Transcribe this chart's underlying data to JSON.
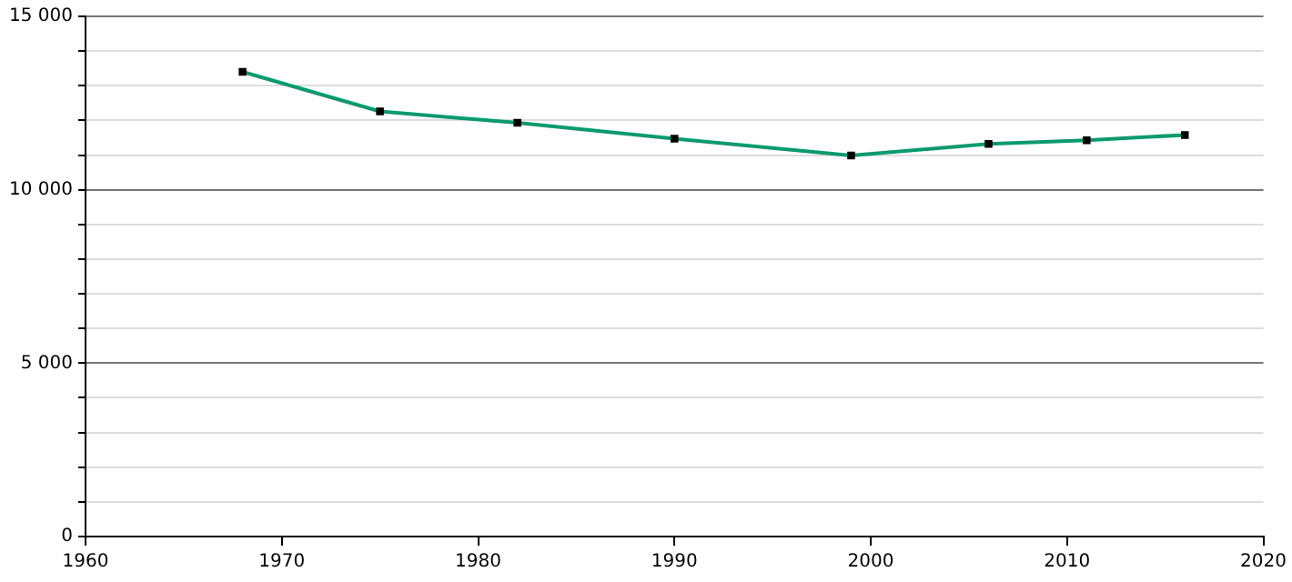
{
  "chart_data": {
    "type": "line",
    "x": [
      1968,
      1975,
      1982,
      1990,
      1999,
      2006,
      2011,
      2016
    ],
    "series": [
      {
        "color": "#0a9a6e",
        "values": [
          13400,
          12260,
          11930,
          11470,
          10990,
          11320,
          11430,
          11580
        ]
      }
    ],
    "xlim": [
      1960,
      2020
    ],
    "xticks": [
      1960,
      1970,
      1980,
      1990,
      2000,
      2010,
      2020
    ],
    "ylim": [
      0,
      15000
    ],
    "yticks": [
      {
        "value": 0,
        "label": "0"
      },
      {
        "value": 1000,
        "label": null
      },
      {
        "value": 2000,
        "label": null
      },
      {
        "value": 3000,
        "label": null
      },
      {
        "value": 4000,
        "label": null
      },
      {
        "value": 5000,
        "label": "5 000"
      },
      {
        "value": 6000,
        "label": null
      },
      {
        "value": 7000,
        "label": null
      },
      {
        "value": 8000,
        "label": null
      },
      {
        "value": 9000,
        "label": null
      },
      {
        "value": 10000,
        "label": "10 000"
      },
      {
        "value": 11000,
        "label": null
      },
      {
        "value": 12000,
        "label": null
      },
      {
        "value": 13000,
        "label": null
      },
      {
        "value": 14000,
        "label": null
      },
      {
        "value": 15000,
        "label": "15 000"
      }
    ],
    "grid": "y",
    "legend": false,
    "marker": "square",
    "line_style": "solid"
  }
}
